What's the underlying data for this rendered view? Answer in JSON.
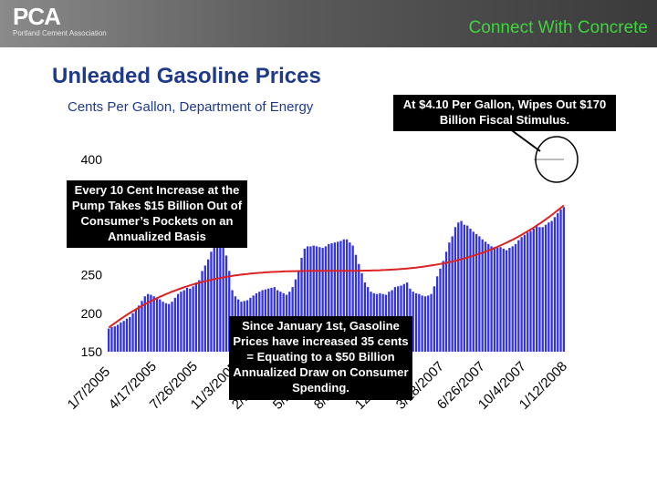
{
  "header": {
    "logo_text": "PCA",
    "logo_subtitle": "Portland Cement Association",
    "tagline": "Connect With Concrete",
    "colors": {
      "header_bg": "#5a5a5a",
      "tagline": "#3cd63c"
    }
  },
  "slide": {
    "title": "Unleaded Gasoline Prices",
    "subtitle": "Cents Per Gallon, Department of Energy"
  },
  "callouts": {
    "top_right": "At $4.10 Per Gallon, Wipes Out $170 Billion Fiscal Stimulus.",
    "left": "Every 10 Cent Increase at the Pump Takes $15 Billion Out of Consumer’s Pockets on an Annualized Basis",
    "center": "Since January 1st,  Gasoline Prices have increased 35 cents = Equating to a $50 Billion Annualized Draw on Consumer Spending."
  },
  "chart_data": {
    "type": "bar",
    "ylim": [
      150,
      400
    ],
    "yticks": [
      150,
      200,
      250,
      400
    ],
    "xtick_labels": [
      "1/7/2005",
      "4/17/2005",
      "7/26/2005",
      "11/3/2005",
      "2/11/2006",
      "5/22/2006",
      "8/30/2006",
      "12/8/2006",
      "3/18/2007",
      "6/26/2007",
      "10/4/2007",
      "1/12/2008"
    ],
    "bar_color": "#3333dd",
    "trend_color": "#dd2222",
    "values": [
      180,
      182,
      183,
      185,
      188,
      190,
      193,
      195,
      200,
      205,
      210,
      216,
      222,
      225,
      224,
      222,
      220,
      218,
      215,
      213,
      212,
      215,
      220,
      225,
      228,
      230,
      233,
      232,
      235,
      240,
      243,
      255,
      262,
      270,
      280,
      310,
      305,
      298,
      290,
      275,
      255,
      230,
      222,
      218,
      215,
      216,
      217,
      220,
      223,
      226,
      228,
      230,
      231,
      232,
      233,
      234,
      230,
      228,
      226,
      224,
      228,
      234,
      244,
      256,
      272,
      284,
      287,
      287,
      288,
      287,
      286,
      285,
      287,
      290,
      291,
      292,
      293,
      294,
      296,
      296,
      292,
      288,
      276,
      264,
      252,
      240,
      234,
      228,
      226,
      225,
      226,
      225,
      224,
      228,
      230,
      234,
      235,
      236,
      238,
      240,
      232,
      228,
      226,
      225,
      223,
      222,
      223,
      225,
      235,
      248,
      258,
      268,
      280,
      292,
      300,
      312,
      318,
      320,
      315,
      314,
      310,
      306,
      303,
      300,
      296,
      293,
      290,
      287,
      286,
      285,
      286,
      284,
      282,
      285,
      287,
      290,
      295,
      299,
      302,
      305,
      307,
      310,
      313,
      312,
      312,
      315,
      318,
      320,
      325,
      330,
      335,
      338
    ]
  }
}
